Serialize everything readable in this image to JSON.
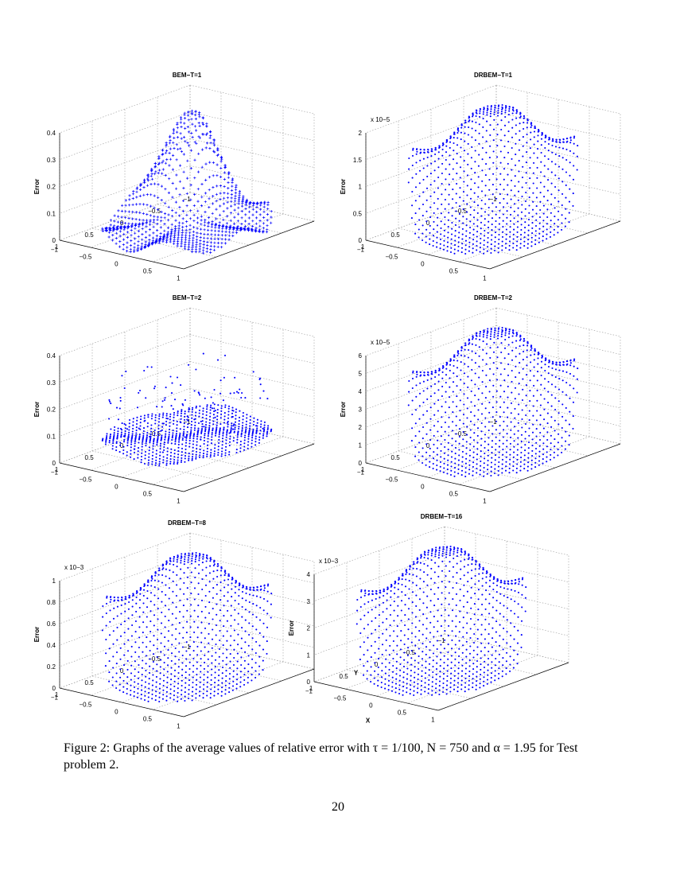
{
  "figure": {
    "caption": "Figure 2: Graphs of the average values of relative error with τ = 1/100, N = 750 and α = 1.95 for Test problem 2.",
    "page_number": "20",
    "marker_color": "#0000ff",
    "grid_color": "#9a9a9a"
  },
  "chart_data": [
    {
      "type": "scatter",
      "title": "BEM−T=1",
      "zlabel": "Error",
      "xlabel": "",
      "ylabel": "",
      "z_multiplier": "",
      "zticks": [
        "0",
        "0.1",
        "0.2",
        "0.3",
        "0.4"
      ],
      "zlim": [
        0,
        0.4
      ],
      "x_ticks": [
        "−1",
        "−0.5",
        "0",
        "0.5",
        "1"
      ],
      "y_ticks": [
        "−1",
        "−0.5",
        "0",
        "0.5",
        "1"
      ],
      "xlim": [
        -1,
        1
      ],
      "ylim": [
        -1,
        1
      ],
      "surface": "bem",
      "marker": "plus",
      "peak": 0.4
    },
    {
      "type": "scatter",
      "title": "DRBEM−T=1",
      "zlabel": "Error",
      "xlabel": "",
      "ylabel": "",
      "z_multiplier": "x 10−5",
      "zticks": [
        "0",
        "0.5",
        "1",
        "1.5",
        "2"
      ],
      "zlim": [
        0,
        2
      ],
      "x_ticks": [
        "−1",
        "−0.5",
        "0",
        "0.5",
        "1"
      ],
      "y_ticks": [
        "−1",
        "−0.5",
        "0",
        "0.5",
        "1"
      ],
      "xlim": [
        -1,
        1
      ],
      "ylim": [
        -1,
        1
      ],
      "surface": "drbem",
      "marker": "dot",
      "peak": 1.9
    },
    {
      "type": "scatter",
      "title": "BEM−T=2",
      "zlabel": "Error",
      "xlabel": "",
      "ylabel": "",
      "z_multiplier": "",
      "zticks": [
        "0",
        "0.1",
        "0.2",
        "0.3",
        "0.4"
      ],
      "zlim": [
        0,
        0.4
      ],
      "x_ticks": [
        "−1",
        "−0.5",
        "0",
        "0.5",
        "1"
      ],
      "y_ticks": [
        "−1",
        "−0.5",
        "0",
        "0.5",
        "1"
      ],
      "xlim": [
        -1,
        1
      ],
      "ylim": [
        -1,
        1
      ],
      "surface": "bem_scatter",
      "marker": "dot",
      "peak": 0.45
    },
    {
      "type": "scatter",
      "title": "DRBEM−T=2",
      "zlabel": "Error",
      "xlabel": "",
      "ylabel": "",
      "z_multiplier": "x 10−5",
      "zticks": [
        "0",
        "1",
        "2",
        "3",
        "4",
        "5",
        "6"
      ],
      "zlim": [
        0,
        6
      ],
      "x_ticks": [
        "−1",
        "−0.5",
        "0",
        "0.5",
        "1"
      ],
      "y_ticks": [
        "−1",
        "−0.5",
        "0",
        "0.5",
        "1"
      ],
      "xlim": [
        -1,
        1
      ],
      "ylim": [
        -1,
        1
      ],
      "surface": "drbem",
      "marker": "dot",
      "peak": 6.6
    },
    {
      "type": "scatter",
      "title": "DRBEM−T=8",
      "zlabel": "Error",
      "xlabel": "",
      "ylabel": "",
      "z_multiplier": "x 10−3",
      "zticks": [
        "0",
        "0.2",
        "0.4",
        "0.6",
        "0.8",
        "1"
      ],
      "zlim": [
        0,
        1
      ],
      "x_ticks": [
        "−1",
        "−0.5",
        "0",
        "0.5",
        "1"
      ],
      "y_ticks": [
        "−1",
        "−0.5",
        "0",
        "0.5",
        "1"
      ],
      "xlim": [
        -1,
        1
      ],
      "ylim": [
        -1,
        1
      ],
      "surface": "drbem",
      "marker": "dot",
      "peak": 1.2
    },
    {
      "type": "scatter",
      "title": "DRBEM−T=16",
      "zlabel": "Error",
      "xlabel": "X",
      "ylabel": "Y",
      "z_multiplier": "x 10−3",
      "zticks": [
        "0",
        "1",
        "2",
        "3",
        "4"
      ],
      "zlim": [
        0,
        4
      ],
      "x_ticks": [
        "−1",
        "−0.5",
        "0",
        "0.5",
        "1"
      ],
      "y_ticks": [
        "−1",
        "−0.5",
        "0",
        "0.5",
        "1"
      ],
      "xlim": [
        -1,
        1
      ],
      "ylim": [
        -1,
        1
      ],
      "surface": "drbem",
      "marker": "dot",
      "peak": 4.7
    }
  ]
}
